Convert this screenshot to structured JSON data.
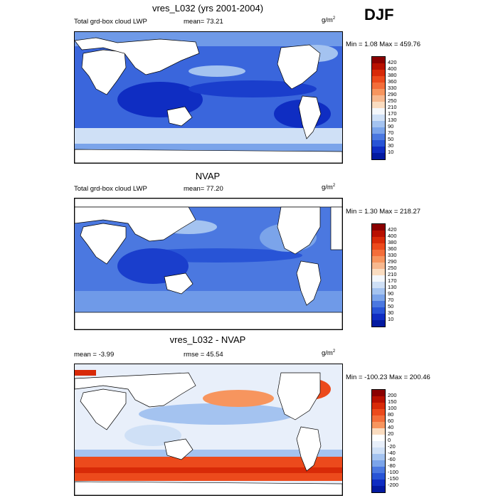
{
  "season": "DJF",
  "panels": [
    {
      "title": "vres_L032 (yrs 2001-2004)",
      "left_label": "Total grd-box cloud LWP",
      "mean_label": "mean=  73.21",
      "units": "g/m",
      "minmax": "Min =   1.08 Max = 459.76",
      "colorbar": {
        "labels": [
          "420",
          "400",
          "380",
          "360",
          "330",
          "290",
          "250",
          "210",
          "170",
          "130",
          "90",
          "70",
          "50",
          "30",
          "10"
        ],
        "colors": [
          "#8b0000",
          "#b81000",
          "#d82a08",
          "#ec4a1c",
          "#f46e3a",
          "#f7955e",
          "#f7b88e",
          "#fadcc0",
          "#f4f7fb",
          "#cfe0f6",
          "#a4c3f0",
          "#7ba4ea",
          "#4b78e0",
          "#2854d6",
          "#0f2dc2",
          "#031aa0"
        ]
      }
    },
    {
      "title": "NVAP",
      "left_label": "Total grd-box cloud LWP",
      "mean_label": "mean=  77.20",
      "units": "g/m",
      "minmax": "Min =   1.30 Max = 218.27",
      "colorbar": {
        "labels": [
          "420",
          "400",
          "380",
          "360",
          "330",
          "290",
          "250",
          "210",
          "170",
          "130",
          "90",
          "70",
          "50",
          "30",
          "10"
        ],
        "colors": [
          "#8b0000",
          "#b81000",
          "#d82a08",
          "#ec4a1c",
          "#f46e3a",
          "#f7955e",
          "#f7b88e",
          "#fadcc0",
          "#f4f7fb",
          "#cfe0f6",
          "#a4c3f0",
          "#7ba4ea",
          "#4b78e0",
          "#2854d6",
          "#0f2dc2",
          "#031aa0"
        ]
      }
    },
    {
      "title": "vres_L032 - NVAP",
      "left_label": "mean =  -3.99",
      "mean_label": "rmse =  45.54",
      "units": "g/m",
      "minmax": "Min = -100.23 Max = 200.46",
      "colorbar": {
        "labels": [
          "200",
          "150",
          "100",
          "80",
          "60",
          "40",
          "20",
          "0",
          "-20",
          "-40",
          "-60",
          "-80",
          "-100",
          "-150",
          "-200"
        ],
        "colors": [
          "#8b0000",
          "#b81000",
          "#d82a08",
          "#ec4a1c",
          "#f46e3a",
          "#f7955e",
          "#fadcc0",
          "#ffffff",
          "#e8effa",
          "#cfe0f6",
          "#a4c3f0",
          "#7ba4ea",
          "#4b78e0",
          "#2854d6",
          "#0f2dc2",
          "#031aa0"
        ]
      }
    }
  ]
}
